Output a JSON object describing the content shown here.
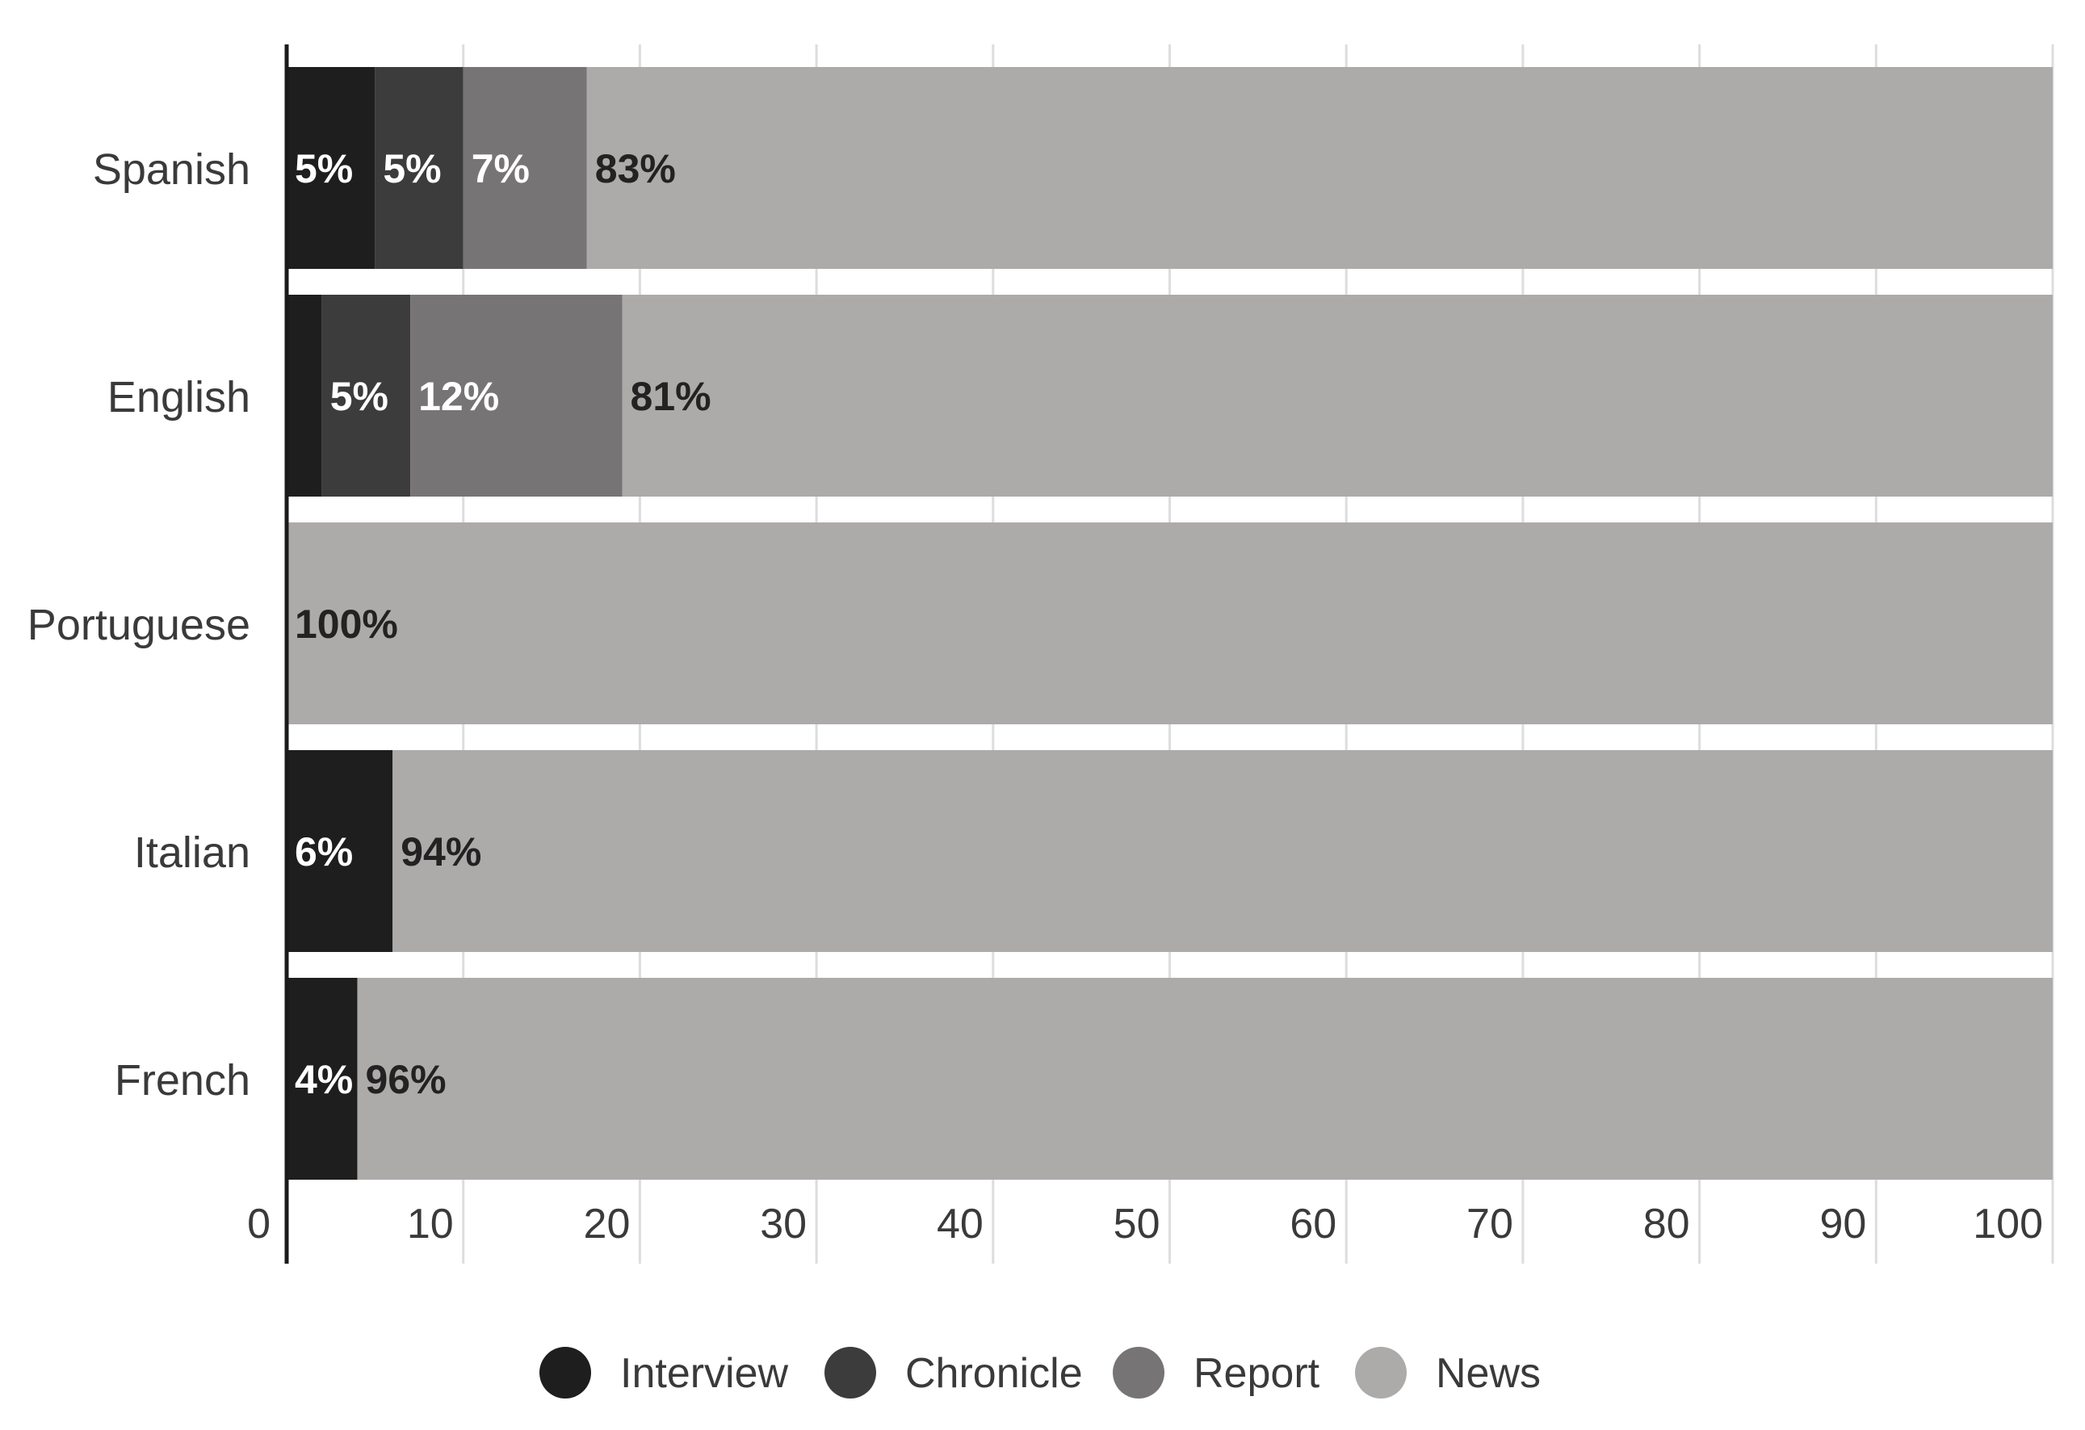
{
  "chart_data": {
    "type": "bar",
    "orientation": "horizontal",
    "stacked": true,
    "categories": [
      "Spanish",
      "English",
      "Portuguese",
      "Italian",
      "French"
    ],
    "series": [
      {
        "name": "Interview",
        "color": "#1e1e1e",
        "label_color": "#ffffff",
        "values": [
          5,
          2,
          0,
          6,
          4
        ],
        "labels": [
          "5%",
          "",
          "",
          "6%",
          "4%"
        ]
      },
      {
        "name": "Chronicle",
        "color": "#3d3c3c",
        "label_color": "#ffffff",
        "values": [
          5,
          5,
          0,
          0,
          0
        ],
        "labels": [
          "5%",
          "5%",
          "",
          "",
          ""
        ]
      },
      {
        "name": "Report",
        "color": "#767474",
        "label_color": "#ffffff",
        "values": [
          7,
          12,
          0,
          0,
          0
        ],
        "labels": [
          "7%",
          "12%",
          "",
          "",
          ""
        ]
      },
      {
        "name": "News",
        "color": "#adaaaa",
        "label_color": "#222222",
        "values": [
          83,
          81,
          100,
          94,
          96
        ],
        "labels": [
          "83%",
          "81%",
          "100%",
          "94%",
          "96%"
        ]
      }
    ],
    "xlim": [
      0,
      100
    ],
    "x_ticks": [
      "0",
      "10",
      "20",
      "30",
      "40",
      "50",
      "60",
      "70",
      "80",
      "90",
      "100"
    ],
    "grid": true,
    "legend_position": "bottom",
    "title": "",
    "xlabel": "",
    "ylabel": ""
  }
}
